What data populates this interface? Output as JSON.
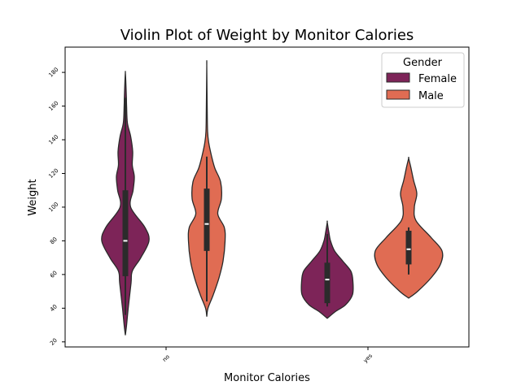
{
  "chart_data": {
    "type": "violin",
    "title": "Violin Plot of Weight by Monitor Calories",
    "xlabel": "Monitor Calories",
    "ylabel": "Weight",
    "categories": [
      "no",
      "yes"
    ],
    "ylim": [
      17,
      195
    ],
    "yticks": [
      20,
      40,
      60,
      80,
      100,
      120,
      140,
      160,
      180
    ],
    "grid": false,
    "legend": {
      "title": "Gender",
      "placement": "top-right",
      "entries": [
        "Female",
        "Male"
      ]
    },
    "colors": {
      "Female": "#7d2458",
      "Male": "#e06c53",
      "outline": "#2a2a2a",
      "box": "#2b2b2b"
    },
    "series": [
      {
        "name": "Female",
        "category": "no",
        "density_max_halfwidth": 1.0,
        "profile": [
          [
            24,
            0.0
          ],
          [
            30,
            0.03
          ],
          [
            40,
            0.07
          ],
          [
            55,
            0.14
          ],
          [
            62,
            0.17
          ],
          [
            70,
            0.38
          ],
          [
            80,
            0.58
          ],
          [
            88,
            0.48
          ],
          [
            100,
            0.13
          ],
          [
            110,
            0.19
          ],
          [
            118,
            0.22
          ],
          [
            125,
            0.17
          ],
          [
            133,
            0.18
          ],
          [
            142,
            0.13
          ],
          [
            150,
            0.05
          ],
          [
            160,
            0.03
          ],
          [
            165,
            0.025
          ],
          [
            175,
            0.01
          ],
          [
            180,
            0.0
          ]
        ],
        "whisker": [
          36,
          165
        ],
        "q1": 59,
        "median": 80,
        "q3": 110
      },
      {
        "name": "Male",
        "category": "no",
        "profile": [
          [
            35,
            0.0
          ],
          [
            40,
            0.03
          ],
          [
            48,
            0.16
          ],
          [
            58,
            0.3
          ],
          [
            68,
            0.4
          ],
          [
            80,
            0.45
          ],
          [
            88,
            0.43
          ],
          [
            96,
            0.27
          ],
          [
            105,
            0.36
          ],
          [
            115,
            0.34
          ],
          [
            123,
            0.2
          ],
          [
            130,
            0.12
          ],
          [
            138,
            0.05
          ],
          [
            145,
            0.02
          ],
          [
            160,
            0.01
          ],
          [
            184,
            0.0
          ]
        ],
        "whisker": [
          44,
          130
        ],
        "q1": 74,
        "median": 90,
        "q3": 111
      },
      {
        "name": "Female",
        "category": "yes",
        "profile": [
          [
            34,
            0.0
          ],
          [
            38,
            0.2
          ],
          [
            42,
            0.45
          ],
          [
            48,
            0.62
          ],
          [
            56,
            0.63
          ],
          [
            62,
            0.58
          ],
          [
            68,
            0.38
          ],
          [
            74,
            0.18
          ],
          [
            80,
            0.08
          ],
          [
            85,
            0.04
          ],
          [
            91,
            0.0
          ]
        ],
        "whisker": [
          41,
          84
        ],
        "q1": 43,
        "median": 57,
        "q3": 67
      },
      {
        "name": "Male",
        "category": "yes",
        "profile": [
          [
            46,
            0.0
          ],
          [
            50,
            0.22
          ],
          [
            58,
            0.55
          ],
          [
            66,
            0.78
          ],
          [
            74,
            0.82
          ],
          [
            82,
            0.55
          ],
          [
            92,
            0.18
          ],
          [
            100,
            0.14
          ],
          [
            108,
            0.2
          ],
          [
            116,
            0.12
          ],
          [
            124,
            0.05
          ],
          [
            129,
            0.0
          ]
        ],
        "whisker": [
          60,
          88
        ],
        "q1": 66,
        "median": 75,
        "q3": 86
      }
    ]
  }
}
